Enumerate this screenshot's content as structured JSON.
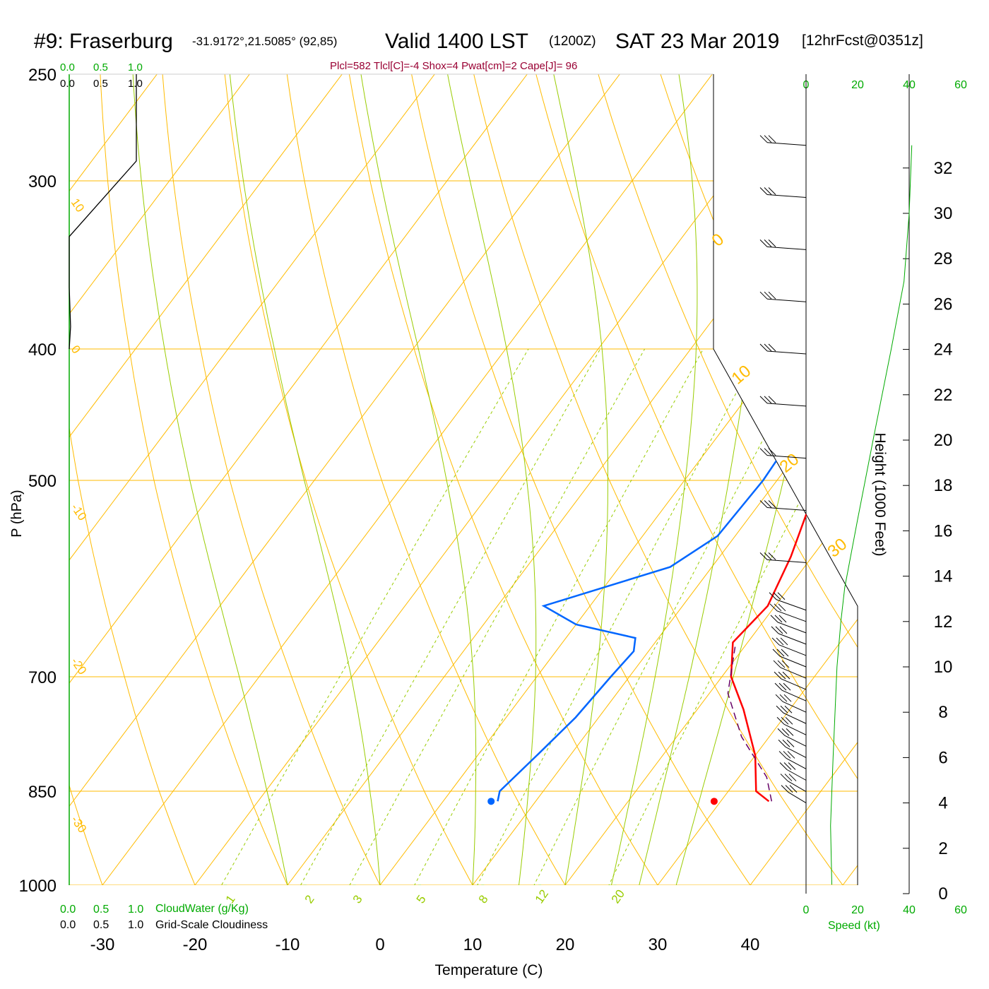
{
  "header": {
    "station": "#9: Fraserburg",
    "coords": "-31.9172°,21.5085° (92,85)",
    "valid": "Valid 1400 LST",
    "zulu": "(1200Z)",
    "date": "SAT 23 Mar 2019",
    "forecast": "[12hrFcst@0351z]",
    "params": "Plcl=582 Tlcl[C]=-4 Shox=4 Pwat[cm]=2 Cape[J]= 96"
  },
  "colors": {
    "temperature": "#ff0000",
    "dewpoint": "#0066ff",
    "parcel": "#660066",
    "isobar": "#ffbb00",
    "dry_adiabat": "#ffbb00",
    "moist_adiabat": "#99cc00",
    "mixing_ratio": "#99cc00",
    "cloud_water": "#00aa00",
    "speed": "#00aa00",
    "params_text": "#990033",
    "axis": "#000000"
  },
  "scales": {
    "cloud_top_green": [
      "0.0",
      "0.5",
      "1.0"
    ],
    "cloud_top_black": [
      "0.0",
      "0.5",
      "1.0"
    ],
    "cloud_bottom_green": [
      "0.0",
      "0.5",
      "1.0"
    ],
    "cloud_bottom_black": [
      "0.0",
      "0.5",
      "1.0"
    ],
    "cloudwater_label": "CloudWater (g/Kg)",
    "cloudiness_label": "Grid-Scale Cloudiness",
    "speed_ticks": [
      "0",
      "20",
      "40",
      "60"
    ],
    "speed_label": "Speed (kt)"
  },
  "chart_data": {
    "type": "line",
    "title": "#9: Fraserburg",
    "xlabel": "Temperature (C)",
    "ylabel": "P (hPa)",
    "y2label": "Height (1000 Feet)",
    "x_ticks": [
      -30,
      -20,
      -10,
      0,
      10,
      20,
      30,
      40
    ],
    "p_ticks": [
      250,
      300,
      400,
      500,
      700,
      850,
      1000
    ],
    "height_ticks": [
      0,
      2,
      4,
      6,
      8,
      10,
      12,
      14,
      16,
      18,
      20,
      22,
      24,
      26,
      28,
      30,
      32
    ],
    "isotherm_labels": [
      "10",
      "0",
      "-10",
      "-20",
      "-30"
    ],
    "dry_adiabat_labels": [
      "0",
      "10",
      "20",
      "30"
    ],
    "mixing_ratio_labels": [
      "1",
      "2",
      "3",
      "5",
      "8",
      "12",
      "20"
    ],
    "series": [
      {
        "name": "Temperature",
        "points": [
          [
            35.2,
            865
          ],
          [
            33.0,
            850
          ],
          [
            30.0,
            800
          ],
          [
            25.0,
            740
          ],
          [
            21.0,
            700
          ],
          [
            18.4,
            660
          ],
          [
            19.2,
            620
          ],
          [
            17.7,
            570
          ],
          [
            14.5,
            500
          ],
          [
            12.5,
            450
          ],
          [
            10.6,
            400
          ],
          [
            8.6,
            350
          ],
          [
            5.5,
            300
          ],
          [
            2.0,
            260
          ],
          [
            0.0,
            252
          ]
        ]
      },
      {
        "name": "Dew Point",
        "points": [
          [
            5.9,
            865
          ],
          [
            5.3,
            850
          ],
          [
            6.4,
            800
          ],
          [
            7.5,
            750
          ],
          [
            8.0,
            700
          ],
          [
            8.4,
            670
          ],
          [
            7.5,
            655
          ],
          [
            0.0,
            640
          ],
          [
            -5.0,
            620
          ],
          [
            5.5,
            580
          ],
          [
            8.1,
            550
          ],
          [
            8.5,
            500
          ],
          [
            8.0,
            450
          ],
          [
            8.4,
            400
          ],
          [
            7.5,
            380
          ],
          [
            3.5,
            320
          ],
          [
            0.0,
            285
          ],
          [
            -3.9,
            252
          ]
        ]
      },
      {
        "name": "Parcel",
        "points": [
          [
            35.5,
            865
          ],
          [
            33.0,
            830
          ],
          [
            27.0,
            775
          ],
          [
            22.0,
            720
          ],
          [
            19.0,
            665
          ]
        ]
      },
      {
        "name": "Grid-Scale Cloudiness",
        "points": [
          [
            1.0,
            250
          ],
          [
            1.0,
            290
          ],
          [
            0.0,
            330
          ],
          [
            0.0,
            360
          ],
          [
            0.02,
            385
          ],
          [
            0.0,
            400
          ]
        ]
      },
      {
        "name": "Wind Speed",
        "points": [
          [
            10,
            0.4
          ],
          [
            9.5,
            3
          ],
          [
            10.5,
            6
          ],
          [
            12,
            10
          ],
          [
            13.5,
            12
          ],
          [
            15,
            13.5
          ],
          [
            20,
            16.5
          ],
          [
            26,
            20
          ],
          [
            33,
            24
          ],
          [
            38,
            27
          ],
          [
            40,
            30
          ],
          [
            41,
            33
          ]
        ]
      }
    ],
    "surface_temperature": 36.1,
    "surface_dewpoint": 12.0
  }
}
